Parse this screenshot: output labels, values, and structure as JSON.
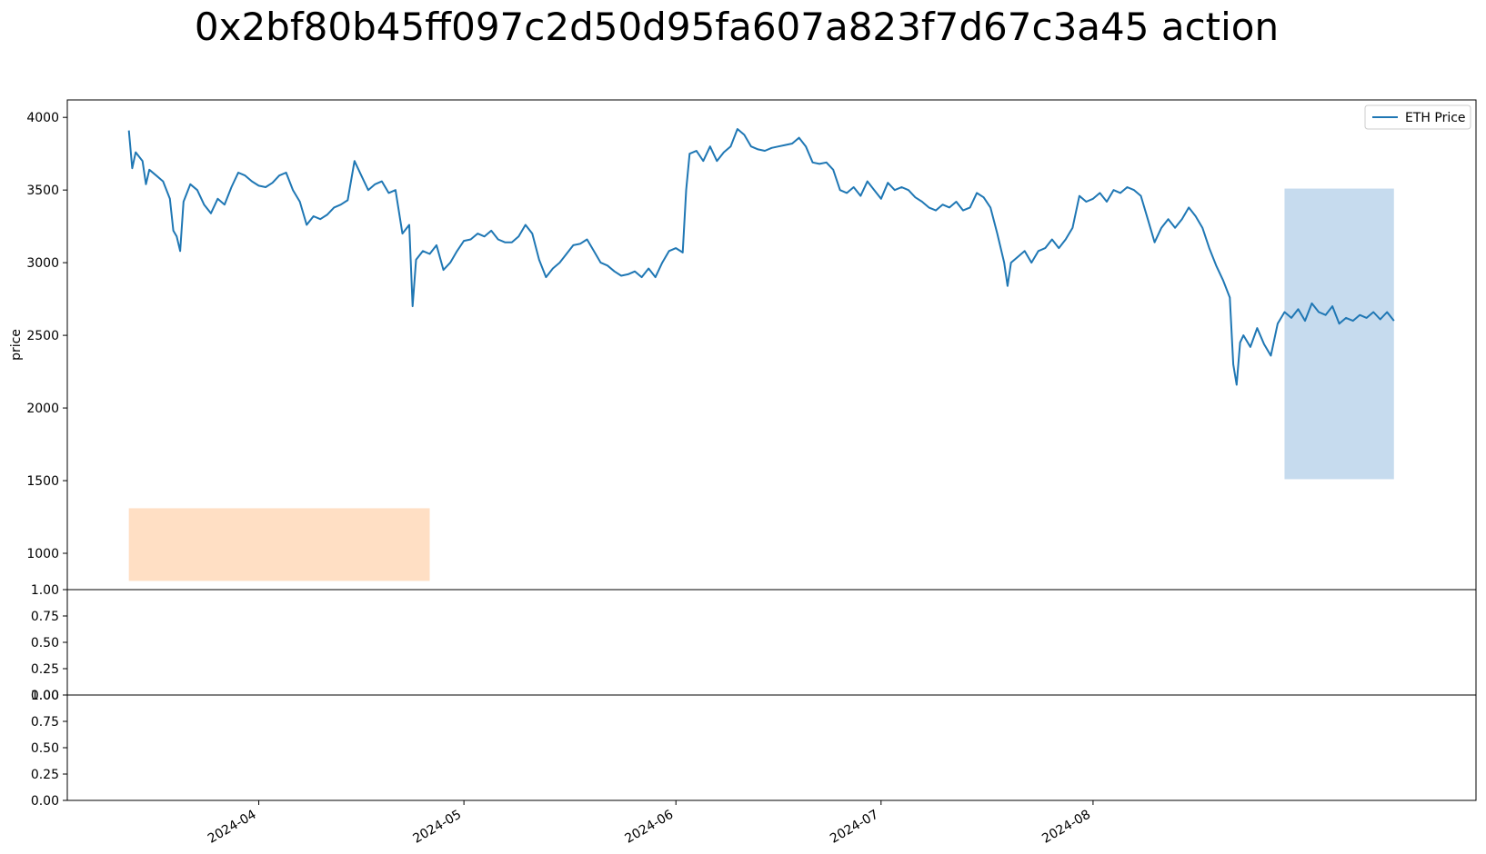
{
  "chart_data": {
    "type": "line",
    "title": "0x2bf80b45ff097c2d50d95fa607a823f7d67c3a45 action",
    "colors": {
      "series": "#1f77b4",
      "position_band": "#c6dbee",
      "action_band": "#ffdfc4",
      "axes": "#000000"
    },
    "panels": [
      {
        "id": "price",
        "ylabel": "price",
        "ylim": [
          750,
          4120
        ],
        "yticks": [
          "1000",
          "1500",
          "2000",
          "2500",
          "3000",
          "3500",
          "4000"
        ],
        "legend": {
          "placement": "upper-right",
          "entries": [
            "ETH Price"
          ]
        },
        "series": [
          {
            "name": "ETH Price",
            "points": [
              [
                "2024-03-13",
                3910
              ],
              [
                "2024-03-13T12:00",
                3650
              ],
              [
                "2024-03-14",
                3760
              ],
              [
                "2024-03-15",
                3700
              ],
              [
                "2024-03-15T12:00",
                3540
              ],
              [
                "2024-03-16",
                3640
              ],
              [
                "2024-03-17",
                3600
              ],
              [
                "2024-03-18",
                3560
              ],
              [
                "2024-03-19",
                3440
              ],
              [
                "2024-03-19T12:00",
                3220
              ],
              [
                "2024-03-20",
                3180
              ],
              [
                "2024-03-20T12:00",
                3080
              ],
              [
                "2024-03-21",
                3420
              ],
              [
                "2024-03-22",
                3540
              ],
              [
                "2024-03-23",
                3500
              ],
              [
                "2024-03-24",
                3400
              ],
              [
                "2024-03-25",
                3340
              ],
              [
                "2024-03-26",
                3440
              ],
              [
                "2024-03-27",
                3400
              ],
              [
                "2024-03-28",
                3520
              ],
              [
                "2024-03-29",
                3620
              ],
              [
                "2024-03-30",
                3600
              ],
              [
                "2024-03-31",
                3560
              ],
              [
                "2024-04-01",
                3530
              ],
              [
                "2024-04-02",
                3520
              ],
              [
                "2024-04-03",
                3550
              ],
              [
                "2024-04-04",
                3600
              ],
              [
                "2024-04-05",
                3620
              ],
              [
                "2024-04-06",
                3500
              ],
              [
                "2024-04-07",
                3420
              ],
              [
                "2024-04-08",
                3260
              ],
              [
                "2024-04-09",
                3320
              ],
              [
                "2024-04-10",
                3300
              ],
              [
                "2024-04-11",
                3330
              ],
              [
                "2024-04-12",
                3380
              ],
              [
                "2024-04-13",
                3400
              ],
              [
                "2024-04-14",
                3430
              ],
              [
                "2024-04-15",
                3700
              ],
              [
                "2024-04-16",
                3600
              ],
              [
                "2024-04-17",
                3500
              ],
              [
                "2024-04-18",
                3540
              ],
              [
                "2024-04-19",
                3560
              ],
              [
                "2024-04-20",
                3480
              ],
              [
                "2024-04-21",
                3500
              ],
              [
                "2024-04-22",
                3200
              ],
              [
                "2024-04-23",
                3260
              ],
              [
                "2024-04-23T12:00",
                2700
              ],
              [
                "2024-04-24",
                3020
              ],
              [
                "2024-04-25",
                3080
              ],
              [
                "2024-04-26",
                3060
              ],
              [
                "2024-04-27",
                3120
              ],
              [
                "2024-04-28",
                2950
              ],
              [
                "2024-04-29",
                3000
              ],
              [
                "2024-04-30",
                3080
              ],
              [
                "2024-05-01",
                3150
              ],
              [
                "2024-05-02",
                3160
              ],
              [
                "2024-05-03",
                3200
              ],
              [
                "2024-05-04",
                3180
              ],
              [
                "2024-05-05",
                3220
              ],
              [
                "2024-05-06",
                3160
              ],
              [
                "2024-05-07",
                3140
              ],
              [
                "2024-05-08",
                3140
              ],
              [
                "2024-05-09",
                3180
              ],
              [
                "2024-05-10",
                3260
              ],
              [
                "2024-05-11",
                3200
              ],
              [
                "2024-05-12",
                3020
              ],
              [
                "2024-05-13",
                2900
              ],
              [
                "2024-05-14",
                2960
              ],
              [
                "2024-05-15",
                3000
              ],
              [
                "2024-05-16",
                3060
              ],
              [
                "2024-05-17",
                3120
              ],
              [
                "2024-05-18",
                3130
              ],
              [
                "2024-05-19",
                3160
              ],
              [
                "2024-05-20",
                3080
              ],
              [
                "2024-05-21",
                3000
              ],
              [
                "2024-05-22",
                2980
              ],
              [
                "2024-05-23",
                2940
              ],
              [
                "2024-05-24",
                2910
              ],
              [
                "2024-05-25",
                2920
              ],
              [
                "2024-05-26",
                2940
              ],
              [
                "2024-05-27",
                2900
              ],
              [
                "2024-05-28",
                2960
              ],
              [
                "2024-05-29",
                2900
              ],
              [
                "2024-05-30",
                3000
              ],
              [
                "2024-05-31",
                3080
              ],
              [
                "2024-06-01",
                3100
              ],
              [
                "2024-06-02",
                3070
              ],
              [
                "2024-06-02T12:00",
                3500
              ],
              [
                "2024-06-03",
                3750
              ],
              [
                "2024-06-04",
                3770
              ],
              [
                "2024-06-05",
                3700
              ],
              [
                "2024-06-06",
                3800
              ],
              [
                "2024-06-07",
                3700
              ],
              [
                "2024-06-08",
                3760
              ],
              [
                "2024-06-09",
                3800
              ],
              [
                "2024-06-10",
                3920
              ],
              [
                "2024-06-11",
                3880
              ],
              [
                "2024-06-12",
                3800
              ],
              [
                "2024-06-13",
                3780
              ],
              [
                "2024-06-14",
                3770
              ],
              [
                "2024-06-15",
                3790
              ],
              [
                "2024-06-16",
                3800
              ],
              [
                "2024-06-17",
                3810
              ],
              [
                "2024-06-18",
                3820
              ],
              [
                "2024-06-19",
                3860
              ],
              [
                "2024-06-20",
                3800
              ],
              [
                "2024-06-21",
                3690
              ],
              [
                "2024-06-22",
                3680
              ],
              [
                "2024-06-23",
                3690
              ],
              [
                "2024-06-24",
                3640
              ],
              [
                "2024-06-25",
                3500
              ],
              [
                "2024-06-26",
                3480
              ],
              [
                "2024-06-27",
                3520
              ],
              [
                "2024-06-28",
                3460
              ],
              [
                "2024-06-29",
                3560
              ],
              [
                "2024-06-30",
                3500
              ],
              [
                "2024-07-01",
                3440
              ],
              [
                "2024-07-02",
                3550
              ],
              [
                "2024-07-03",
                3500
              ],
              [
                "2024-07-04",
                3520
              ],
              [
                "2024-07-05",
                3500
              ],
              [
                "2024-07-06",
                3450
              ],
              [
                "2024-07-07",
                3420
              ],
              [
                "2024-07-08",
                3380
              ],
              [
                "2024-07-09",
                3360
              ],
              [
                "2024-07-10",
                3400
              ],
              [
                "2024-07-11",
                3380
              ],
              [
                "2024-07-12",
                3420
              ],
              [
                "2024-07-13",
                3360
              ],
              [
                "2024-07-14",
                3380
              ],
              [
                "2024-07-15",
                3480
              ],
              [
                "2024-07-16",
                3450
              ],
              [
                "2024-07-17",
                3380
              ],
              [
                "2024-07-18",
                3200
              ],
              [
                "2024-07-19",
                3000
              ],
              [
                "2024-07-19T12:00",
                2840
              ],
              [
                "2024-07-20",
                3000
              ],
              [
                "2024-07-21",
                3040
              ],
              [
                "2024-07-22",
                3080
              ],
              [
                "2024-07-23",
                3000
              ],
              [
                "2024-07-24",
                3080
              ],
              [
                "2024-07-25",
                3100
              ],
              [
                "2024-07-26",
                3160
              ],
              [
                "2024-07-27",
                3100
              ],
              [
                "2024-07-28",
                3160
              ],
              [
                "2024-07-29",
                3240
              ],
              [
                "2024-07-30",
                3460
              ],
              [
                "2024-07-31",
                3420
              ],
              [
                "2024-08-01",
                3440
              ],
              [
                "2024-08-02",
                3480
              ],
              [
                "2024-08-03",
                3420
              ],
              [
                "2024-08-04",
                3500
              ],
              [
                "2024-08-05",
                3480
              ],
              [
                "2024-08-06",
                3520
              ],
              [
                "2024-08-07",
                3500
              ],
              [
                "2024-08-08",
                3460
              ],
              [
                "2024-08-09",
                3300
              ],
              [
                "2024-08-10",
                3140
              ],
              [
                "2024-08-11",
                3240
              ],
              [
                "2024-08-12",
                3300
              ],
              [
                "2024-08-13",
                3240
              ],
              [
                "2024-08-14",
                3300
              ],
              [
                "2024-08-15",
                3380
              ],
              [
                "2024-08-16",
                3320
              ],
              [
                "2024-08-17",
                3240
              ],
              [
                "2024-08-18",
                3100
              ],
              [
                "2024-08-19",
                2980
              ],
              [
                "2024-08-20",
                2880
              ],
              [
                "2024-08-21",
                2760
              ],
              [
                "2024-08-21T12:00",
                2300
              ],
              [
                "2024-08-22",
                2160
              ],
              [
                "2024-08-22T12:00",
                2450
              ],
              [
                "2024-08-23",
                2500
              ],
              [
                "2024-08-24",
                2420
              ],
              [
                "2024-08-25",
                2550
              ],
              [
                "2024-08-26",
                2440
              ],
              [
                "2024-08-27",
                2360
              ],
              [
                "2024-08-28",
                2580
              ],
              [
                "2024-08-29",
                2660
              ],
              [
                "2024-08-30",
                2620
              ],
              [
                "2024-08-31",
                2680
              ],
              [
                "2024-09-01",
                2600
              ],
              [
                "2024-09-02",
                2720
              ],
              [
                "2024-09-03",
                2660
              ],
              [
                "2024-09-04",
                2640
              ],
              [
                "2024-09-05",
                2700
              ],
              [
                "2024-09-06",
                2580
              ],
              [
                "2024-09-07",
                2620
              ],
              [
                "2024-09-08",
                2600
              ],
              [
                "2024-09-09",
                2640
              ],
              [
                "2024-09-10",
                2620
              ],
              [
                "2024-09-11",
                2660
              ],
              [
                "2024-09-12",
                2610
              ],
              [
                "2024-09-13",
                2660
              ],
              [
                "2024-09-14",
                2600
              ]
            ]
          }
        ],
        "bands": [
          {
            "kind": "action",
            "x0": "2024-03-13",
            "x1": "2024-04-26",
            "y0": 810,
            "y1": 1310
          },
          {
            "kind": "position",
            "x0": "2024-08-29",
            "x1": "2024-09-14",
            "y0": 1510,
            "y1": 3510
          }
        ]
      },
      {
        "id": "sub1",
        "ylim": [
          0,
          1
        ],
        "yticks": [
          "0.00",
          "0.25",
          "0.50",
          "0.75",
          "1.00"
        ]
      },
      {
        "id": "sub2",
        "ylim": [
          0,
          1
        ],
        "yticks": [
          "0.00",
          "0.25",
          "0.50",
          "0.75",
          "1.00"
        ]
      }
    ],
    "xaxis": {
      "xlim": [
        "2024-03-04",
        "2024-09-26"
      ],
      "ticks": [
        {
          "value": "2024-04-01",
          "label": "2024-04"
        },
        {
          "value": "2024-05-01",
          "label": "2024-05"
        },
        {
          "value": "2024-06-01",
          "label": "2024-06"
        },
        {
          "value": "2024-07-01",
          "label": "2024-07"
        },
        {
          "value": "2024-08-01",
          "label": "2024-08"
        }
      ]
    },
    "grid": false
  }
}
